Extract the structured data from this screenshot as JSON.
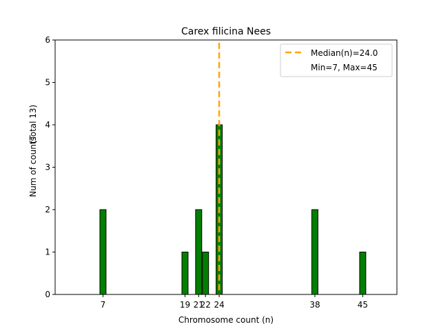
{
  "chart_data": {
    "type": "bar",
    "title": "Carex filicina Nees",
    "xlabel": "Chromosome count (n)",
    "ylabel": "Num of counts",
    "ylabel_total": "(Total 13)",
    "xlim": [
      0,
      50
    ],
    "ylim": [
      0,
      6
    ],
    "yticks": [
      0,
      1,
      2,
      3,
      4,
      5,
      6
    ],
    "xticks": [
      7,
      19,
      21,
      22,
      24,
      38,
      45
    ],
    "bars": [
      {
        "x": 7,
        "count": 2
      },
      {
        "x": 19,
        "count": 1
      },
      {
        "x": 21,
        "count": 2
      },
      {
        "x": 22,
        "count": 1
      },
      {
        "x": 24,
        "count": 4
      },
      {
        "x": 38,
        "count": 2
      },
      {
        "x": 45,
        "count": 1
      }
    ],
    "baseline_end_x": 48.5,
    "median": 24.0,
    "legend": {
      "position": "top-right",
      "median_label": "Median(n)=24.0",
      "range_label": "Min=7, Max=45"
    },
    "colors": {
      "bar": "#008000",
      "bar_edge": "#000000",
      "median": "#ffa500"
    }
  }
}
